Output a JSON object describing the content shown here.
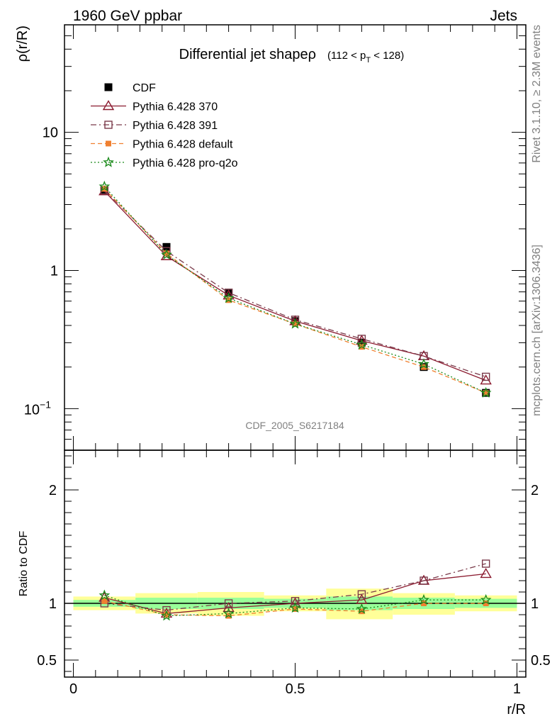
{
  "header": {
    "left_title": "1960 GeV ppbar",
    "right_title": "Jets",
    "side_top": "Rivet 3.1.10, ≥ 2.3M events",
    "side_bottom": "mcplots.cern.ch [arXiv:1306.3436]"
  },
  "chart_data": [
    {
      "type": "line",
      "title_main": "Differential jet shapeρ",
      "title_cut_pre": "(112 < p",
      "title_cut_sub": "T",
      "title_cut_post": " < 128)",
      "ylabel": "ρ(r/R)",
      "yscale": "log",
      "ylim": [
        0.05,
        60
      ],
      "xlim": [
        -0.02,
        1.02
      ],
      "yticks": [
        {
          "v": 0.1,
          "base": "10",
          "exp": "−1"
        },
        {
          "v": 1,
          "label": "1"
        },
        {
          "v": 10,
          "label": "10"
        }
      ],
      "watermark": "CDF_2005_S6217184",
      "x": [
        0.07,
        0.21,
        0.35,
        0.5,
        0.65,
        0.79,
        0.93
      ],
      "series": [
        {
          "name": "CDF",
          "color": "#000000",
          "marker": "square-filled",
          "line": "none",
          "values": [
            3.8,
            1.48,
            0.69,
            0.43,
            0.3,
            0.2,
            0.13
          ]
        },
        {
          "name": "Pythia 6.428 370",
          "color": "#8b1a2f",
          "marker": "triangle-open",
          "line": "solid",
          "values": [
            3.75,
            1.27,
            0.66,
            0.43,
            0.31,
            0.24,
            0.16
          ]
        },
        {
          "name": "Pythia 6.428 391",
          "color": "#7a3a4a",
          "marker": "square-open",
          "line": "dashdot",
          "values": [
            3.8,
            1.38,
            0.69,
            0.44,
            0.32,
            0.24,
            0.17
          ]
        },
        {
          "name": "Pythia 6.428 default",
          "color": "#f08030",
          "marker": "square-filled-small",
          "line": "dashed",
          "values": [
            3.9,
            1.33,
            0.61,
            0.41,
            0.28,
            0.2,
            0.13
          ]
        },
        {
          "name": "Pythia 6.428 pro-q2o",
          "color": "#1a8a1a",
          "marker": "star",
          "line": "dotted",
          "values": [
            4.05,
            1.3,
            0.63,
            0.41,
            0.29,
            0.21,
            0.13
          ]
        }
      ]
    },
    {
      "type": "line",
      "ylabel": "Ratio to CDF",
      "xlabel": "r/R",
      "ylim": [
        0.35,
        2.35
      ],
      "xlim": [
        -0.02,
        1.02
      ],
      "yticks": [
        {
          "v": 0.5,
          "label": "0.5"
        },
        {
          "v": 1,
          "label": "1"
        },
        {
          "v": 2,
          "label": "2"
        }
      ],
      "xticks": [
        {
          "v": 0,
          "label": "0"
        },
        {
          "v": 0.5,
          "label": "0.5"
        },
        {
          "v": 1,
          "label": "1"
        }
      ],
      "bands": [
        {
          "x0": 0.0,
          "x1": 0.14,
          "g": [
            0.97,
            1.03
          ],
          "y": [
            0.94,
            1.06
          ]
        },
        {
          "x0": 0.14,
          "x1": 0.28,
          "g": [
            0.95,
            1.05
          ],
          "y": [
            0.91,
            1.09
          ]
        },
        {
          "x0": 0.28,
          "x1": 0.43,
          "g": [
            0.95,
            1.05
          ],
          "y": [
            0.89,
            1.1
          ]
        },
        {
          "x0": 0.43,
          "x1": 0.57,
          "g": [
            0.96,
            1.04
          ],
          "y": [
            0.93,
            1.07
          ]
        },
        {
          "x0": 0.57,
          "x1": 0.72,
          "g": [
            0.94,
            1.06
          ],
          "y": [
            0.86,
            1.13
          ]
        },
        {
          "x0": 0.72,
          "x1": 0.86,
          "g": [
            0.95,
            1.05
          ],
          "y": [
            0.9,
            1.09
          ]
        },
        {
          "x0": 0.86,
          "x1": 1.0,
          "g": [
            0.96,
            1.04
          ],
          "y": [
            0.93,
            1.07
          ]
        }
      ],
      "series": [
        {
          "name": "Pythia 6.428 370",
          "color": "#8b1a2f",
          "marker": "triangle-open",
          "line": "solid",
          "values": [
            1.05,
            0.91,
            0.96,
            1.0,
            1.03,
            1.2,
            1.26
          ]
        },
        {
          "name": "Pythia 6.428 391",
          "color": "#7a3a4a",
          "marker": "square-open",
          "line": "dashdot",
          "values": [
            1.0,
            0.94,
            1.0,
            1.02,
            1.08,
            1.2,
            1.35
          ]
        },
        {
          "name": "Pythia 6.428 default",
          "color": "#f08030",
          "marker": "square-filled-small",
          "line": "dashed",
          "values": [
            1.02,
            0.9,
            0.89,
            0.95,
            0.93,
            1.0,
            1.0
          ]
        },
        {
          "name": "Pythia 6.428 pro-q2o",
          "color": "#1a8a1a",
          "marker": "star",
          "line": "dotted",
          "values": [
            1.07,
            0.89,
            0.91,
            0.96,
            0.95,
            1.03,
            1.03
          ]
        }
      ]
    }
  ]
}
